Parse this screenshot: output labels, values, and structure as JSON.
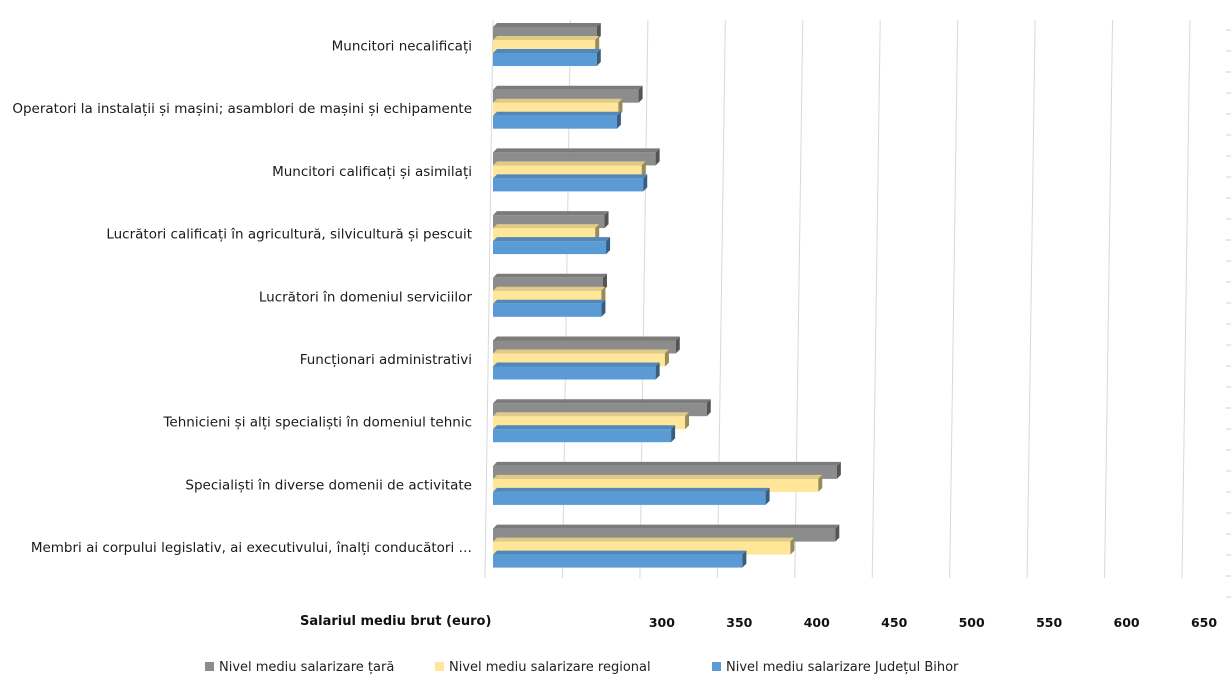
{
  "chart_data": {
    "type": "bar",
    "orientation": "horizontal",
    "style": "3d",
    "xlabel": "Salariul mediu brut (euro)",
    "xlim": [
      200,
      650
    ],
    "x_ticks_visible": [
      300,
      350,
      400,
      450,
      500,
      550,
      600,
      650
    ],
    "grid": true,
    "legend_position": "bottom",
    "categories": [
      "Muncitori necalificați",
      "Operatori la instalații și mașini; asamblori de mașini și echipamente",
      "Muncitori calificați și asimilați",
      "Lucrători calificați în agricultură, silvicultură și pescuit",
      "Lucrători în domeniul serviciilor",
      "Funcționari administrativi",
      "Tehnicieni și alți specialiști în domeniul tehnic",
      "Specialiști în diverse domenii de activitate",
      "Membri ai corpului legislativ, ai executivului, înalți conducători …"
    ],
    "series": [
      {
        "name": "Nivel mediu salarizare țară",
        "color": "#8c8c8c",
        "values": [
          267,
          294,
          305,
          272,
          271,
          318,
          338,
          422,
          421
        ]
      },
      {
        "name": "Nivel mediu salarizare regional",
        "color": "#ffe699",
        "values": [
          266,
          281,
          296,
          266,
          270,
          311,
          324,
          410,
          392
        ]
      },
      {
        "name": "Nivel mediu salarizare Județul Bihor",
        "color": "#5b9bd5",
        "values": [
          267,
          280,
          297,
          273,
          270,
          305,
          315,
          376,
          361
        ]
      }
    ]
  }
}
